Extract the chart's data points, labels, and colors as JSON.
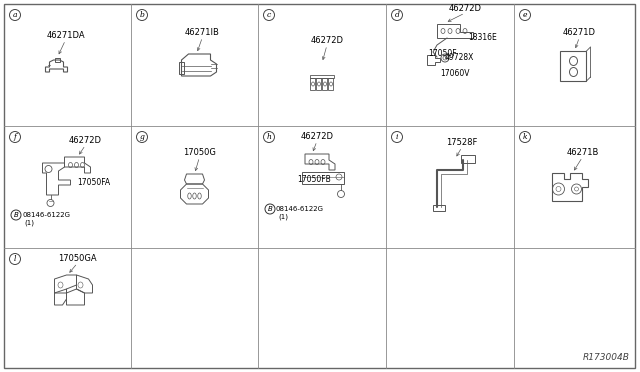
{
  "bg_color": "#f5f5f5",
  "border_color": "#888888",
  "line_color": "#555555",
  "text_color": "#000000",
  "diagram_label": "R173004B",
  "font_size": 6.5,
  "small_font": 5.5,
  "col_bounds": [
    4,
    131,
    258,
    386,
    514,
    635
  ],
  "row_bounds": [
    368,
    246,
    124,
    4
  ],
  "cells": [
    {
      "id": "a",
      "col": 0,
      "row": 0,
      "label": "46271DA",
      "letter": "a"
    },
    {
      "id": "b",
      "col": 1,
      "row": 0,
      "label": "46271IB",
      "letter": "b"
    },
    {
      "id": "c",
      "col": 2,
      "row": 0,
      "label": "46272D",
      "letter": "c"
    },
    {
      "id": "d",
      "col": 3,
      "row": 0,
      "label": "46272D",
      "letter": "d"
    },
    {
      "id": "e",
      "col": 4,
      "row": 0,
      "label": "46271D",
      "letter": "e"
    },
    {
      "id": "f",
      "col": 0,
      "row": 1,
      "label": "46272D",
      "letter": "f"
    },
    {
      "id": "g",
      "col": 1,
      "row": 1,
      "label": "17050G",
      "letter": "g"
    },
    {
      "id": "h",
      "col": 2,
      "row": 1,
      "label": "46272D",
      "letter": "h"
    },
    {
      "id": "i",
      "col": 3,
      "row": 1,
      "label": "17528F",
      "letter": "i"
    },
    {
      "id": "k",
      "col": 4,
      "row": 1,
      "label": "46271B",
      "letter": "k"
    },
    {
      "id": "l",
      "col": 0,
      "row": 2,
      "label": "17050GA",
      "letter": "l"
    }
  ]
}
